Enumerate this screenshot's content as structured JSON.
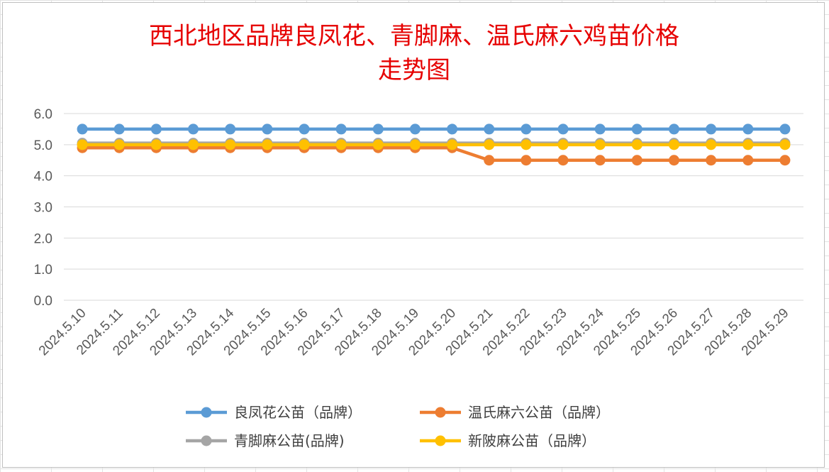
{
  "chart_data": {
    "type": "line",
    "title": "西北地区品牌良凤花、青脚麻、温氏麻六鸡苗价格走势图",
    "title_lines": [
      "西北地区品牌良凤花、青脚麻、温氏麻六鸡苗价格",
      "走势图"
    ],
    "xlabel": "",
    "ylabel": "",
    "ylim": [
      0,
      6
    ],
    "y_ticks": [
      "0.0",
      "1.0",
      "2.0",
      "3.0",
      "4.0",
      "5.0",
      "6.0"
    ],
    "grid": true,
    "legend_position": "bottom",
    "categories": [
      "2024.5.10",
      "2024.5.11",
      "2024.5.12",
      "2024.5.13",
      "2024.5.14",
      "2024.5.15",
      "2024.5.16",
      "2024.5.17",
      "2024.5.18",
      "2024.5.19",
      "2024.5.20",
      "2024.5.21",
      "2024.5.22",
      "2024.5.23",
      "2024.5.24",
      "2024.5.25",
      "2024.5.26",
      "2024.5.27",
      "2024.5.28",
      "2024.5.29"
    ],
    "series": [
      {
        "name": "良凤花公苗（品牌）",
        "color": "#5b9bd5",
        "values": [
          5.5,
          5.5,
          5.5,
          5.5,
          5.5,
          5.5,
          5.5,
          5.5,
          5.5,
          5.5,
          5.5,
          5.5,
          5.5,
          5.5,
          5.5,
          5.5,
          5.5,
          5.5,
          5.5,
          5.5
        ]
      },
      {
        "name": "温氏麻六公苗（品牌）",
        "color": "#ed7d31",
        "values": [
          4.9,
          4.9,
          4.9,
          4.9,
          4.9,
          4.9,
          4.9,
          4.9,
          4.9,
          4.9,
          4.9,
          4.5,
          4.5,
          4.5,
          4.5,
          4.5,
          4.5,
          4.5,
          4.5,
          4.5
        ]
      },
      {
        "name": "青脚麻公苗(品牌)",
        "color": "#a5a5a5",
        "values": [
          5.05,
          5.05,
          5.05,
          5.05,
          5.05,
          5.05,
          5.05,
          5.05,
          5.05,
          5.05,
          5.05,
          5.05,
          5.05,
          5.05,
          5.05,
          5.05,
          5.05,
          5.05,
          5.05,
          5.05
        ]
      },
      {
        "name": "新陂麻公苗（品牌）",
        "color": "#ffc000",
        "values": [
          5.0,
          5.0,
          5.0,
          5.0,
          5.0,
          5.0,
          5.0,
          5.0,
          5.0,
          5.0,
          5.0,
          5.0,
          5.0,
          5.0,
          5.0,
          5.0,
          5.0,
          5.0,
          5.0,
          5.0
        ]
      }
    ]
  }
}
